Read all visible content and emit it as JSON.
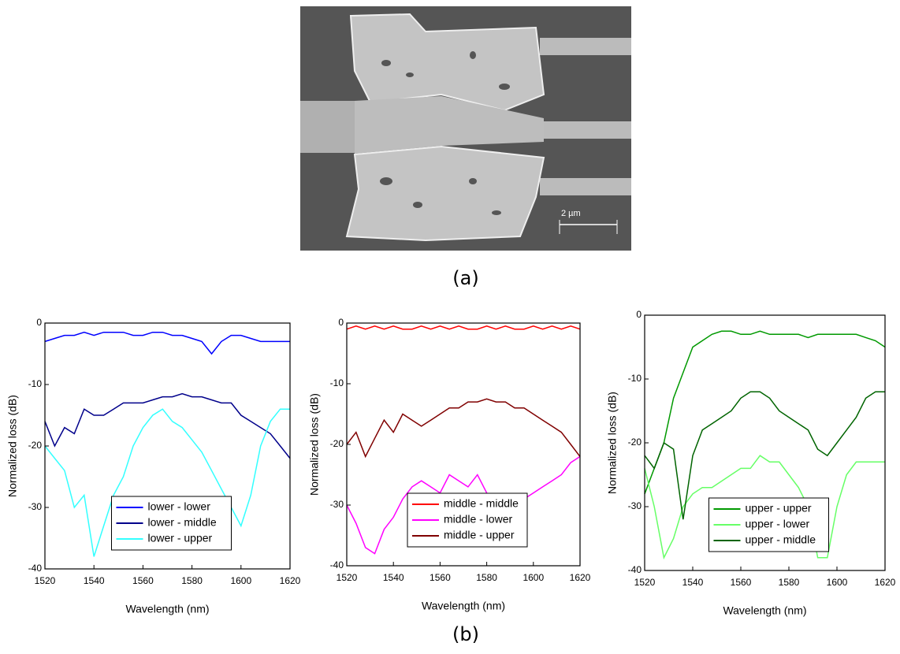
{
  "captions": {
    "a": "(a)",
    "b": "(b)",
    "scale_bar": "2 µm"
  },
  "chart_data": [
    {
      "type": "line",
      "x_label": "Wavelength (nm)",
      "y_label": "Normalized loss (dB)",
      "x": [
        1520,
        1524,
        1528,
        1532,
        1536,
        1540,
        1544,
        1548,
        1552,
        1556,
        1560,
        1564,
        1568,
        1572,
        1576,
        1580,
        1584,
        1588,
        1592,
        1596,
        1600,
        1604,
        1608,
        1612,
        1616,
        1620
      ],
      "xlim": [
        1520,
        1620
      ],
      "xticks": [
        1520,
        1540,
        1560,
        1580,
        1600,
        1620
      ],
      "ylim": [
        -40,
        0
      ],
      "yticks": [
        -40,
        -30,
        -20,
        -10,
        0
      ],
      "legend": "lower center",
      "series": [
        {
          "name": "lower - lower",
          "color": "#0000ff",
          "values": [
            -3,
            -2.5,
            -2,
            -2,
            -1.5,
            -2,
            -1.5,
            -1.5,
            -1.5,
            -2,
            -2,
            -1.5,
            -1.5,
            -2,
            -2,
            -2.5,
            -3,
            -5,
            -3,
            -2,
            -2,
            -2.5,
            -3,
            -3,
            -3,
            -3
          ]
        },
        {
          "name": "lower - middle",
          "color": "#00008b",
          "values": [
            -16,
            -20,
            -17,
            -18,
            -14,
            -15,
            -15,
            -14,
            -13,
            -13,
            -13,
            -12.5,
            -12,
            -12,
            -11.5,
            -12,
            -12,
            -12.5,
            -13,
            -13,
            -15,
            -16,
            -17,
            -18,
            -20,
            -22
          ]
        },
        {
          "name": "lower - upper",
          "color": "#33ffff",
          "values": [
            -20,
            -22,
            -24,
            -30,
            -28,
            -38,
            -33,
            -28,
            -25,
            -20,
            -17,
            -15,
            -14,
            -16,
            -17,
            -19,
            -21,
            -24,
            -27,
            -30,
            -33,
            -28,
            -20,
            -16,
            -14,
            -14
          ]
        }
      ]
    },
    {
      "type": "line",
      "x_label": "Wavelength (nm)",
      "y_label": "Normalized loss (dB)",
      "x": [
        1520,
        1524,
        1528,
        1532,
        1536,
        1540,
        1544,
        1548,
        1552,
        1556,
        1560,
        1564,
        1568,
        1572,
        1576,
        1580,
        1584,
        1588,
        1592,
        1596,
        1600,
        1604,
        1608,
        1612,
        1616,
        1620
      ],
      "xlim": [
        1520,
        1620
      ],
      "xticks": [
        1520,
        1540,
        1560,
        1580,
        1600,
        1620
      ],
      "ylim": [
        -40,
        0
      ],
      "yticks": [
        -40,
        -30,
        -20,
        -10,
        0
      ],
      "legend": "lower center",
      "series": [
        {
          "name": "middle - middle",
          "color": "#ff0000",
          "values": [
            -1,
            -0.5,
            -1,
            -0.5,
            -1,
            -0.5,
            -1,
            -1,
            -0.5,
            -1,
            -0.5,
            -1,
            -0.5,
            -1,
            -1,
            -0.5,
            -1,
            -0.5,
            -1,
            -1,
            -0.5,
            -1,
            -0.5,
            -1,
            -0.5,
            -1
          ]
        },
        {
          "name": "middle - lower",
          "color": "#ff00ff",
          "values": [
            -30,
            -33,
            -37,
            -38,
            -34,
            -32,
            -29,
            -27,
            -26,
            -27,
            -28,
            -25,
            -26,
            -27,
            -25,
            -28,
            -30,
            -31,
            -33,
            -29,
            -28,
            -27,
            -26,
            -25,
            -23,
            -22
          ]
        },
        {
          "name": "middle - upper",
          "color": "#800000",
          "values": [
            -20,
            -18,
            -22,
            -19,
            -16,
            -18,
            -15,
            -16,
            -17,
            -16,
            -15,
            -14,
            -14,
            -13,
            -13,
            -12.5,
            -13,
            -13,
            -14,
            -14,
            -15,
            -16,
            -17,
            -18,
            -20,
            -22
          ]
        }
      ]
    },
    {
      "type": "line",
      "x_label": "Wavelength (nm)",
      "y_label": "Normalized loss (dB)",
      "x": [
        1520,
        1524,
        1528,
        1532,
        1536,
        1540,
        1544,
        1548,
        1552,
        1556,
        1560,
        1564,
        1568,
        1572,
        1576,
        1580,
        1584,
        1588,
        1592,
        1596,
        1600,
        1604,
        1608,
        1612,
        1616,
        1620
      ],
      "xlim": [
        1520,
        1620
      ],
      "xticks": [
        1520,
        1540,
        1560,
        1580,
        1600,
        1620
      ],
      "ylim": [
        -40,
        0
      ],
      "yticks": [
        -40,
        -30,
        -20,
        -10,
        0
      ],
      "legend": "lower center",
      "series": [
        {
          "name": "upper - upper",
          "color": "#009900",
          "values": [
            -28,
            -24,
            -20,
            -13,
            -9,
            -5,
            -4,
            -3,
            -2.5,
            -2.5,
            -3,
            -3,
            -2.5,
            -3,
            -3,
            -3,
            -3,
            -3.5,
            -3,
            -3,
            -3,
            -3,
            -3,
            -3.5,
            -4,
            -5
          ]
        },
        {
          "name": "upper - lower",
          "color": "#66ff66",
          "values": [
            -24,
            -30,
            -38,
            -35,
            -30,
            -28,
            -27,
            -27,
            -26,
            -25,
            -24,
            -24,
            -22,
            -23,
            -23,
            -25,
            -27,
            -30,
            -38,
            -38,
            -30,
            -25,
            -23,
            -23,
            -23,
            -23
          ]
        },
        {
          "name": "upper - middle",
          "color": "#006400",
          "values": [
            -22,
            -24,
            -20,
            -21,
            -32,
            -22,
            -18,
            -17,
            -16,
            -15,
            -13,
            -12,
            -12,
            -13,
            -15,
            -16,
            -17,
            -18,
            -21,
            -22,
            -20,
            -18,
            -16,
            -13,
            -12,
            -12
          ]
        }
      ]
    }
  ]
}
